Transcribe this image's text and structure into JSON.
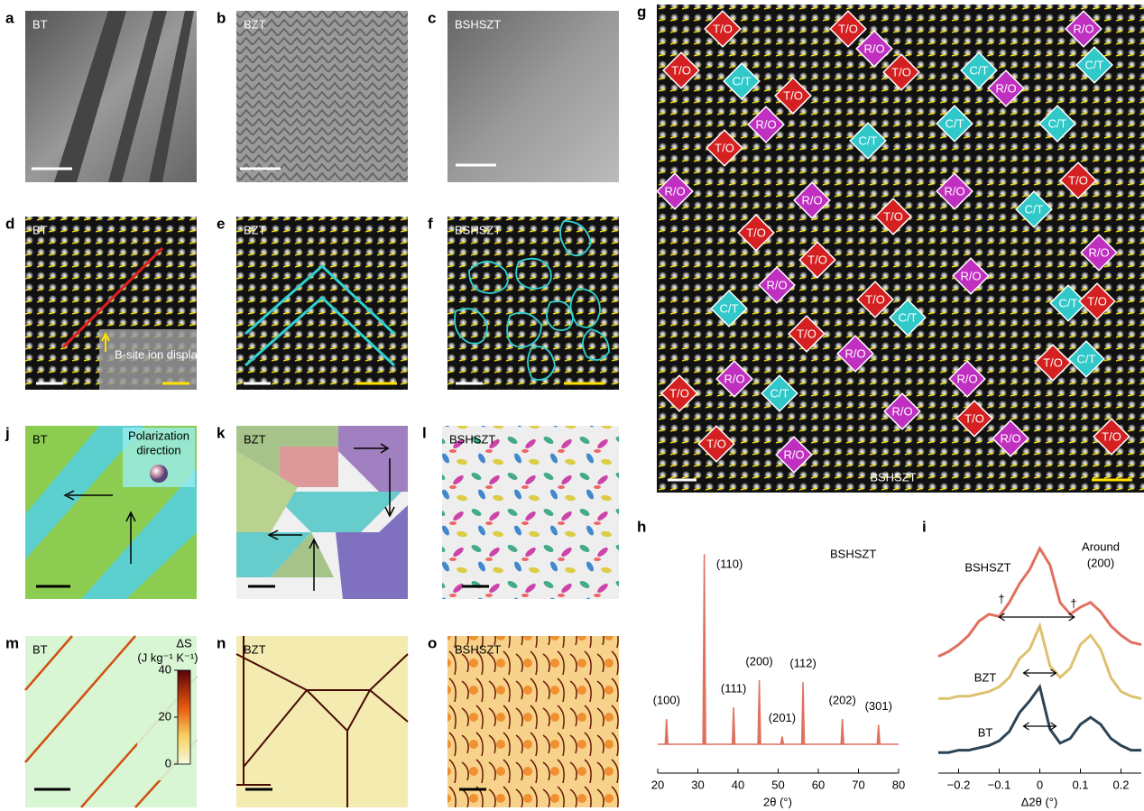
{
  "panels": {
    "a": {
      "letter": "a",
      "label": "BT"
    },
    "b": {
      "letter": "b",
      "label": "BZT"
    },
    "c": {
      "letter": "c",
      "label": "BSHSZT"
    },
    "d": {
      "letter": "d",
      "label": "BT",
      "inset": "B-site ion displacement"
    },
    "e": {
      "letter": "e",
      "label": "BZT"
    },
    "f": {
      "letter": "f",
      "label": "BSHSZT"
    },
    "g": {
      "letter": "g",
      "label": "BSHSZT",
      "tiles": [
        "T/O",
        "T/O",
        "R/O",
        "R/O",
        "T/O",
        "C/T",
        "T/O",
        "C/T",
        "R/O",
        "C/T",
        "T/O",
        "R/O",
        "C/T",
        "C/T",
        "C/T",
        "T/O",
        "T/O",
        "R/O",
        "R/O",
        "R/O",
        "C/T",
        "T/O",
        "T/O",
        "T/O",
        "R/O",
        "R/O",
        "R/O",
        "T/O",
        "C/T",
        "C/T",
        "C/T",
        "T/O",
        "T/O",
        "R/O",
        "T/O",
        "C/T",
        "R/O",
        "T/O",
        "R/O",
        "C/T",
        "R/O",
        "T/O",
        "R/O",
        "T/O",
        "T/O",
        "R/O"
      ]
    },
    "h": {
      "letter": "h",
      "sample": "BSHSZT",
      "xlabel": "2θ (°)",
      "color": "#e07060",
      "xlim": [
        20,
        80
      ],
      "xticks": [
        20,
        30,
        40,
        50,
        60,
        70,
        80
      ],
      "peaks": {
        "x": [
          22.2,
          31.6,
          38.9,
          45.3,
          51.0,
          56.2,
          66.0,
          75.0
        ],
        "values": [
          13,
          98,
          19,
          33,
          4,
          32,
          13,
          10
        ],
        "labels": [
          "(100)",
          "(110)",
          "(111)",
          "(200)",
          "(201)",
          "(112)",
          "(202)",
          "(301)"
        ]
      }
    },
    "i": {
      "letter": "i",
      "annotation": [
        "Around",
        "(200)"
      ],
      "xlabel": "Δ2θ (°)",
      "xlim": [
        -0.25,
        0.25
      ],
      "xticks": [
        {
          "value": -0.2,
          "label": "−0.2"
        },
        {
          "value": -0.1,
          "label": "−0.1"
        },
        0,
        0.1,
        0.2
      ],
      "markers": [
        "†",
        "†"
      ],
      "x": [
        -0.25,
        -0.225,
        -0.2,
        -0.175,
        -0.15,
        -0.125,
        -0.1,
        -0.075,
        -0.05,
        -0.025,
        0,
        0.025,
        0.05,
        0.075,
        0.1,
        0.125,
        0.15,
        0.175,
        0.2,
        0.225,
        0.25
      ],
      "series": [
        {
          "name": "BSHSZT",
          "color": "#e07060",
          "values": [
            49,
            51,
            54,
            58,
            64,
            67,
            66,
            72,
            80,
            86,
            95,
            88,
            72,
            67,
            70,
            72,
            68,
            62,
            58,
            55,
            54
          ]
        },
        {
          "name": "BZT",
          "color": "#e0c070",
          "values": [
            31,
            31,
            32,
            32,
            33,
            34,
            36,
            40,
            48,
            52,
            62,
            45,
            40,
            44,
            54,
            58,
            52,
            40,
            34,
            32,
            31
          ]
        },
        {
          "name": "BT",
          "color": "#2c4454",
          "values": [
            8,
            8,
            9,
            9,
            10,
            11,
            13,
            17,
            25,
            30,
            36,
            18,
            12,
            14,
            20,
            23,
            20,
            14,
            11,
            9,
            9
          ]
        }
      ]
    },
    "j": {
      "letter": "j",
      "label": "BT",
      "legend": [
        "Polarization",
        "direction"
      ]
    },
    "k": {
      "letter": "k",
      "label": "BZT"
    },
    "l": {
      "letter": "l",
      "label": "BSHSZT"
    },
    "m": {
      "letter": "m",
      "label": "BT",
      "colorbar_title": "ΔS",
      "colorbar_unit": "(J kg⁻¹ K⁻¹)",
      "colorbar_lim": [
        0,
        40
      ],
      "colorbar_ticks": [
        0,
        20,
        40
      ]
    },
    "n": {
      "letter": "n",
      "label": "BZT"
    },
    "o": {
      "letter": "o",
      "label": "BSHSZT"
    }
  }
}
